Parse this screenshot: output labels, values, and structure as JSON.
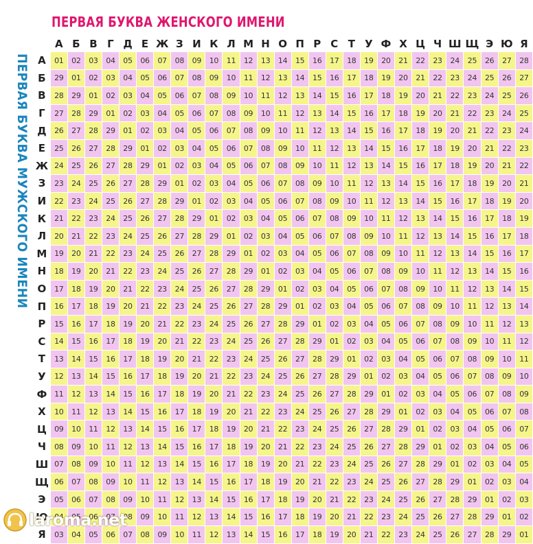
{
  "title_female": "ПЕРВАЯ БУКВА ЖЕНСКОГО ИМЕНИ",
  "title_male": "ПЕРВАЯ БУКВА МУЖСКОГО ИМЕНИ",
  "female_letters": [
    "А",
    "Б",
    "В",
    "Г",
    "Д",
    "Е",
    "Ж",
    "З",
    "И",
    "К",
    "Л",
    "М",
    "Н",
    "О",
    "П",
    "Р",
    "С",
    "Т",
    "У",
    "Ф",
    "Х",
    "Ц",
    "Ч",
    "Ш",
    "Щ",
    "Э",
    "Ю",
    "Я"
  ],
  "male_letters": [
    "А",
    "Б",
    "В",
    "Г",
    "Д",
    "Е",
    "Ж",
    "З",
    "И",
    "К",
    "Л",
    "М",
    "Н",
    "О",
    "П",
    "Р",
    "С",
    "Т",
    "У",
    "Ф",
    "Х",
    "Ц",
    "Ч",
    "Ш",
    "Щ",
    "Э",
    "Ю",
    "Я"
  ],
  "colors": {
    "yellow_cell": "#f5f58a",
    "pink_cell": "#f2c5f0",
    "title_female": "#e0166e",
    "title_male": "#1b85bd"
  },
  "watermark": {
    "text": "laroma.net",
    "icon": "headphones-logo-icon"
  }
}
